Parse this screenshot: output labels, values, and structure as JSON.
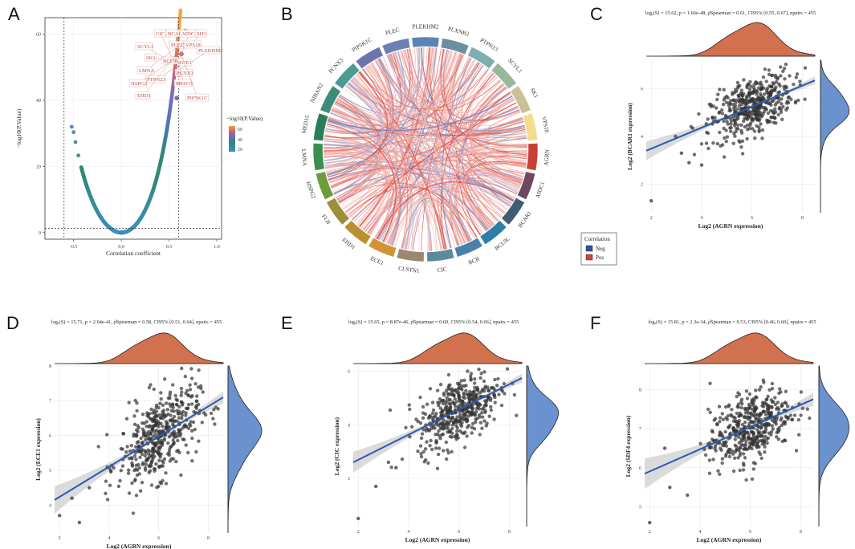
{
  "figure": {
    "panel_labels": [
      "A",
      "B",
      "C",
      "D",
      "E",
      "F"
    ]
  },
  "chart_data": [
    {
      "panel": "A",
      "type": "scatter",
      "title": "",
      "xlabel": "Correlation coefficient",
      "ylabel": "−log10(P.Value)",
      "xlim": [
        -0.8,
        1.05
      ],
      "ylim": [
        -2,
        65
      ],
      "xticks": [
        -0.5,
        0.0,
        0.5,
        1.0
      ],
      "xtick_labels": [
        "-0.5",
        "0.0",
        "0.5",
        "1.0"
      ],
      "yticks": [
        0,
        20,
        40,
        60
      ],
      "ytick_labels": [
        "0",
        "20",
        "40",
        "60"
      ],
      "threshold_x": [
        -0.6,
        0.6
      ],
      "threshold_y": 1.3,
      "legend_title": "−log10(P.Value)",
      "legend_ticks": [
        "60",
        "40",
        "20"
      ],
      "highlight_points": [
        {
          "name": "CIC",
          "x": 0.6,
          "y": 45.2
        },
        {
          "name": "ECE1",
          "x": 0.58,
          "y": 40.7
        },
        {
          "name": "BCAR1",
          "x": 0.61,
          "y": 47.8
        },
        {
          "name": "PLEC",
          "x": 0.63,
          "y": 54
        },
        {
          "name": "VPS18",
          "x": 0.65,
          "y": 57
        },
        {
          "name": "AIDC1",
          "x": 0.67,
          "y": 61
        },
        {
          "name": "PCNX3",
          "x": 0.6,
          "y": 48
        }
      ],
      "labels": [
        "CIC",
        "BCAR1",
        "AIDC1",
        "SH3",
        "PLEC",
        "VPS18",
        "PLEKHM2",
        "SCYL1",
        "SK1",
        "BCL9L",
        "ECE1",
        "LMNA",
        "PCNX3",
        "PTPN23",
        "MED15",
        "HSPG2",
        "EHD1",
        "PIP5K1C"
      ]
    },
    {
      "panel": "B",
      "type": "chord",
      "title": "",
      "sectors": [
        "PLEC",
        "PLEKHM2",
        "PLXNB2",
        "PTPN23",
        "SCYL1",
        "SK1",
        "VPS18",
        "AGRN",
        "AIDC1",
        "BCAR1",
        "BCL9L",
        "BCR",
        "CIC",
        "CLSTN1",
        "ECE1",
        "EHD1",
        "FLII",
        "HSPG2",
        "LMNA",
        "MED15",
        "NIBAN2",
        "PCNX3",
        "PIP5K1C"
      ],
      "sector_colors": [
        "#6d7fb3",
        "#5b84b4",
        "#6b8fa0",
        "#7cb0ae",
        "#9ab79a",
        "#c9c098",
        "#f3dc8c",
        "#c94134",
        "#6e4860",
        "#3f5c75",
        "#2c7fa6",
        "#4a7fad",
        "#5b8a9a",
        "#9c8770",
        "#d29335",
        "#b9902f",
        "#9c8f39",
        "#6e9b3b",
        "#3c8f4f",
        "#2b7d58",
        "#3c8c79",
        "#4d9a95",
        "#6e72ad"
      ],
      "legend_title": "Correlation",
      "legend": [
        {
          "label": "Neg",
          "color": "#33509e"
        },
        {
          "label": "Pos",
          "color": "#d2413c"
        }
      ]
    },
    {
      "panel": "C",
      "type": "scatter",
      "stat_header": "logₑ(S) = 15.62, p = 1.66e-48, ρ̂Spearman = 0.61, CI95% [0.55, 0.67], npairs = 455",
      "xlabel": "Log2 (AGRN expression)",
      "ylabel": "Log2 (BCAR1 expression)",
      "xlim": [
        1.8,
        8.5
      ],
      "ylim": [
        0.8,
        7.2
      ],
      "xticks": [
        2,
        4,
        6,
        8
      ],
      "xtick_labels": [
        "2",
        "4",
        "6",
        "8"
      ],
      "yticks": [
        2,
        4,
        6
      ],
      "ytick_labels": [
        "2",
        "4",
        "6"
      ],
      "n": 455,
      "rho": 0.61,
      "fit": {
        "x0": 1.8,
        "y0": 3.4,
        "x1": 8.5,
        "y1": 6.35
      },
      "x_mean": 6.0,
      "x_sd": 0.95,
      "y_mean": 5.2,
      "y_sd": 0.72,
      "outliers": [
        [
          2,
          1.3
        ],
        [
          4,
          2.8
        ],
        [
          3.2,
          3.3
        ],
        [
          3.5,
          2.9
        ]
      ]
    },
    {
      "panel": "D",
      "type": "scatter",
      "stat_header": "logₑ(S) = 15.71, p = 2.04e-41, ρ̂Spearman = 0.58, CI95% [0.51, 0.64], npairs = 455",
      "xlabel": "Log2 (AGRN expression)",
      "ylabel": "Log2 (ECE1 expression)",
      "xlim": [
        1.8,
        8.6
      ],
      "ylim": [
        3.2,
        8.0
      ],
      "xticks": [
        2,
        4,
        6,
        8
      ],
      "xtick_labels": [
        "2",
        "4",
        "6",
        "8"
      ],
      "yticks": [
        4,
        5,
        6,
        7,
        8
      ],
      "ytick_labels": [
        "4",
        "5",
        "6",
        "7",
        "8"
      ],
      "n": 455,
      "rho": 0.58,
      "fit": {
        "x0": 1.8,
        "y0": 4.15,
        "x1": 8.6,
        "y1": 7.1
      },
      "x_mean": 6.0,
      "x_sd": 0.95,
      "y_mean": 6.1,
      "y_sd": 0.75,
      "outliers": [
        [
          2,
          3.7
        ],
        [
          2.8,
          3.5
        ],
        [
          2.5,
          4.2
        ],
        [
          3.2,
          4.5
        ]
      ]
    },
    {
      "panel": "E",
      "type": "scatter",
      "stat_header": "logₑ(S) = 15.65, p = 8.87e-46, ρ̂Spearman = 0.60, CI95% [0.54, 0.66], npairs = 455",
      "xlabel": "Log2 (AGRN expression)",
      "ylabel": "Log2 (CIC expression)",
      "xlim": [
        1.8,
        8.5
      ],
      "ylim": [
        0.2,
        6.2
      ],
      "xticks": [
        2,
        4,
        6,
        8
      ],
      "xtick_labels": [
        "2",
        "4",
        "6",
        "8"
      ],
      "yticks": [
        2,
        4,
        6
      ],
      "ytick_labels": [
        "2",
        "4",
        "6"
      ],
      "n": 455,
      "rho": 0.6,
      "fit": {
        "x0": 1.8,
        "y0": 2.6,
        "x1": 8.5,
        "y1": 5.75
      },
      "x_mean": 6.0,
      "x_sd": 0.95,
      "y_mean": 4.3,
      "y_sd": 0.75,
      "outliers": [
        [
          2,
          0.5
        ],
        [
          2.7,
          1.7
        ],
        [
          3.2,
          2.6
        ],
        [
          3.5,
          2.4
        ]
      ]
    },
    {
      "panel": "F",
      "type": "scatter",
      "stat_header": "logₑ(S) = 15.81, p = 2.3e-34, ρ̂Spearman = 0.53, CI95% [0.46, 0.60], npairs = 455",
      "xlabel": "Log2 (AGRN expression)",
      "ylabel": "Log2 (SDF4 expression)",
      "xlim": [
        1.8,
        8.5
      ],
      "ylim": [
        4.5,
        8.6
      ],
      "xticks": [
        2,
        4,
        6,
        8
      ],
      "xtick_labels": [
        "2",
        "4",
        "6",
        "8"
      ],
      "yticks": [
        5,
        6,
        7,
        8
      ],
      "ytick_labels": [
        "5",
        "6",
        "7",
        "8"
      ],
      "n": 455,
      "rho": 0.53,
      "fit": {
        "x0": 1.8,
        "y0": 5.85,
        "x1": 8.5,
        "y1": 7.75
      },
      "x_mean": 6.0,
      "x_sd": 0.95,
      "y_mean": 7.0,
      "y_sd": 0.55,
      "outliers": [
        [
          2,
          4.6
        ],
        [
          2.8,
          5.5
        ],
        [
          3.5,
          5.3
        ],
        [
          2.6,
          6.5
        ]
      ]
    }
  ]
}
